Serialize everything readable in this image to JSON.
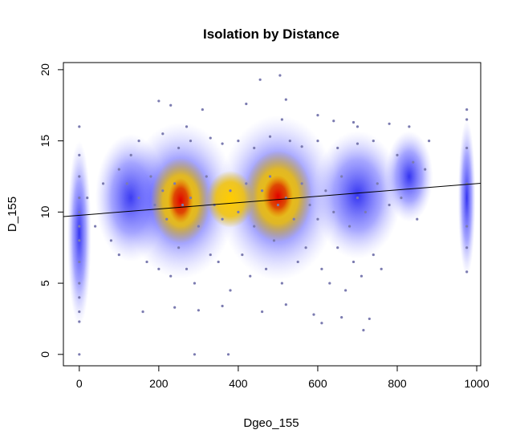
{
  "chart_data": {
    "type": "scatter",
    "title": "Isolation by Distance",
    "xlabel": "Dgeo_155",
    "ylabel": "D_155",
    "xlim": [
      -40,
      1010
    ],
    "ylim": [
      -0.8,
      20.5
    ],
    "xticks": [
      0,
      200,
      400,
      600,
      800,
      1000
    ],
    "yticks": [
      0,
      5,
      10,
      15,
      20
    ],
    "xtick_labels": [
      "0",
      "200",
      "400",
      "600",
      "800",
      "1000"
    ],
    "ytick_labels": [
      "0",
      "5",
      "10",
      "15",
      "20"
    ],
    "grid": false,
    "legend": "none",
    "point_color": "#7b7bb0",
    "density_colors": [
      "#ffffff",
      "#0000ff",
      "#ffd700",
      "#e00000"
    ],
    "regression_line": {
      "x": [
        -40,
        1010
      ],
      "y": [
        9.68,
        12.02
      ]
    },
    "density_peaks": [
      {
        "x": 255,
        "y": 10.8,
        "intensity": 1.0
      },
      {
        "x": 500,
        "y": 11.1,
        "intensity": 1.0
      }
    ],
    "points": [
      [
        0,
        0
      ],
      [
        290,
        0
      ],
      [
        375,
        0
      ],
      [
        505,
        19.6
      ],
      [
        455,
        19.3
      ],
      [
        975,
        17.2
      ],
      [
        975,
        16.5
      ],
      [
        975,
        14.5
      ],
      [
        975,
        12.0
      ],
      [
        975,
        9.0
      ],
      [
        975,
        7.5
      ],
      [
        975,
        5.8
      ],
      [
        0,
        16.0
      ],
      [
        0,
        14.0
      ],
      [
        0,
        12.5
      ],
      [
        0,
        11.0
      ],
      [
        0,
        10.0
      ],
      [
        0,
        9.0
      ],
      [
        0,
        8.0
      ],
      [
        0,
        6.5
      ],
      [
        0,
        5.0
      ],
      [
        0,
        4.0
      ],
      [
        0,
        3.0
      ],
      [
        0,
        2.3
      ],
      [
        200,
        17.8
      ],
      [
        230,
        17.5
      ],
      [
        310,
        17.2
      ],
      [
        420,
        17.6
      ],
      [
        520,
        17.9
      ],
      [
        600,
        16.8
      ],
      [
        640,
        16.4
      ],
      [
        700,
        16.0
      ],
      [
        780,
        16.2
      ],
      [
        830,
        16.0
      ],
      [
        880,
        15.0
      ],
      [
        690,
        16.3
      ],
      [
        510,
        16.5
      ],
      [
        270,
        16.0
      ],
      [
        160,
        3.0
      ],
      [
        240,
        3.3
      ],
      [
        300,
        3.1
      ],
      [
        360,
        3.4
      ],
      [
        460,
        3.0
      ],
      [
        520,
        3.5
      ],
      [
        590,
        2.8
      ],
      [
        610,
        2.2
      ],
      [
        660,
        2.6
      ],
      [
        715,
        1.7
      ],
      [
        730,
        2.5
      ],
      [
        100,
        13.0
      ],
      [
        120,
        12.0
      ],
      [
        150,
        11.0
      ],
      [
        180,
        12.5
      ],
      [
        190,
        10.5
      ],
      [
        210,
        11.5
      ],
      [
        220,
        9.5
      ],
      [
        240,
        12.0
      ],
      [
        260,
        10.5
      ],
      [
        280,
        11.0
      ],
      [
        300,
        9.0
      ],
      [
        320,
        12.5
      ],
      [
        340,
        10.5
      ],
      [
        360,
        9.5
      ],
      [
        380,
        11.5
      ],
      [
        400,
        10.0
      ],
      [
        420,
        12.0
      ],
      [
        440,
        9.0
      ],
      [
        460,
        11.5
      ],
      [
        480,
        12.5
      ],
      [
        500,
        10.5
      ],
      [
        520,
        11.0
      ],
      [
        540,
        9.5
      ],
      [
        560,
        12.0
      ],
      [
        580,
        10.5
      ],
      [
        600,
        9.5
      ],
      [
        620,
        11.5
      ],
      [
        640,
        10.0
      ],
      [
        660,
        12.5
      ],
      [
        680,
        9.0
      ],
      [
        700,
        11.0
      ],
      [
        720,
        10.0
      ],
      [
        750,
        12.0
      ],
      [
        780,
        10.5
      ],
      [
        810,
        11.0
      ],
      [
        850,
        9.5
      ],
      [
        20,
        11.0
      ],
      [
        40,
        9.0
      ],
      [
        60,
        12.0
      ],
      [
        80,
        8.0
      ],
      [
        100,
        7.0
      ],
      [
        130,
        14.0
      ],
      [
        170,
        6.5
      ],
      [
        200,
        6.0
      ],
      [
        230,
        5.5
      ],
      [
        250,
        7.5
      ],
      [
        270,
        6.0
      ],
      [
        290,
        5.0
      ],
      [
        330,
        7.0
      ],
      [
        350,
        6.5
      ],
      [
        380,
        4.5
      ],
      [
        410,
        7.0
      ],
      [
        430,
        5.5
      ],
      [
        470,
        6.0
      ],
      [
        490,
        8.0
      ],
      [
        510,
        5.0
      ],
      [
        550,
        6.5
      ],
      [
        570,
        7.5
      ],
      [
        610,
        6.0
      ],
      [
        630,
        5.0
      ],
      [
        650,
        7.5
      ],
      [
        670,
        4.5
      ],
      [
        690,
        6.5
      ],
      [
        710,
        5.5
      ],
      [
        740,
        7.0
      ],
      [
        760,
        6.0
      ],
      [
        150,
        15.0
      ],
      [
        210,
        15.5
      ],
      [
        250,
        14.5
      ],
      [
        280,
        15.0
      ],
      [
        330,
        15.2
      ],
      [
        360,
        14.8
      ],
      [
        400,
        15.0
      ],
      [
        440,
        14.5
      ],
      [
        480,
        15.3
      ],
      [
        530,
        15.0
      ],
      [
        560,
        14.6
      ],
      [
        600,
        15.0
      ],
      [
        650,
        14.5
      ],
      [
        700,
        14.8
      ],
      [
        740,
        15.0
      ],
      [
        800,
        14.0
      ],
      [
        840,
        13.5
      ],
      [
        870,
        13.0
      ]
    ]
  }
}
